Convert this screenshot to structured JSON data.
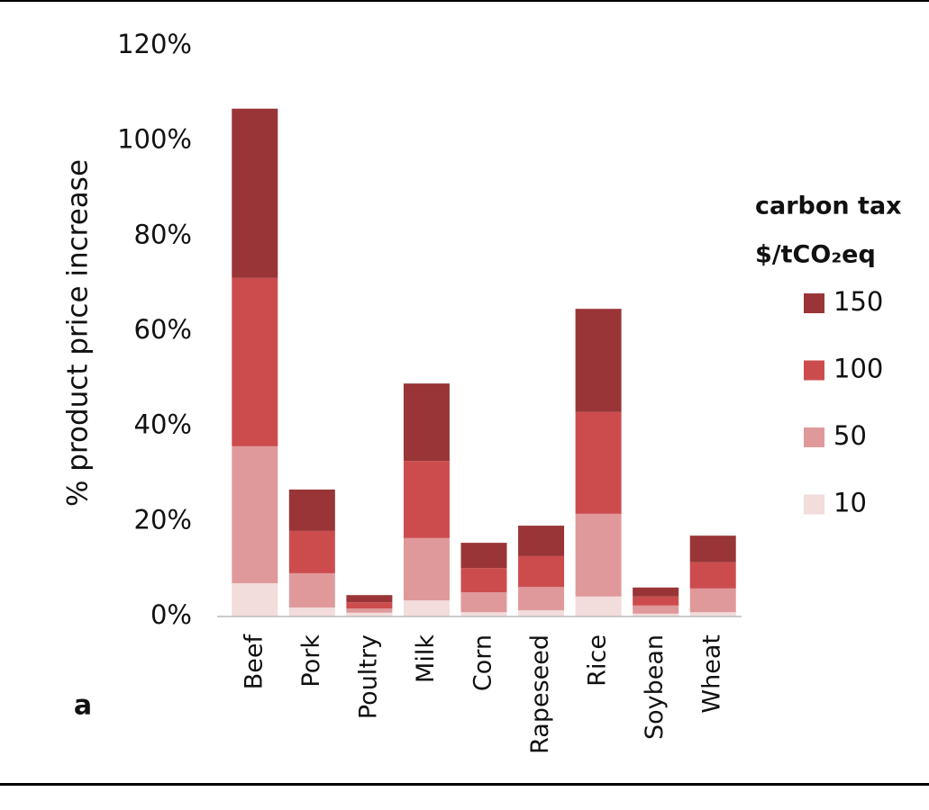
{
  "chart_data": {
    "type": "stacked_bar",
    "y_axis_label": "% product price increase",
    "panel_label": "a",
    "legend_title": [
      "carbon tax",
      "$/tCO₂eq"
    ],
    "categories": [
      "Beef",
      "Pork",
      "Poultry",
      "Milk",
      "Corn",
      "Rapeseed",
      "Rice",
      "Soybean",
      "Wheat"
    ],
    "series": [
      {
        "name": "10",
        "color": "#f2dcdc",
        "values": [
          7.0,
          1.9,
          0.8,
          3.4,
          0.9,
          1.3,
          4.2,
          0.6,
          0.9
        ]
      },
      {
        "name": "50",
        "color": "#e0999a",
        "values": [
          28.8,
          7.2,
          0.9,
          13.1,
          4.2,
          4.9,
          17.4,
          1.7,
          5.0
        ]
      },
      {
        "name": "100",
        "color": "#cc4c4e",
        "values": [
          35.4,
          8.9,
          1.3,
          16.2,
          5.1,
          6.5,
          21.4,
          1.9,
          5.5
        ]
      },
      {
        "name": "150",
        "color": "#993536",
        "values": [
          35.6,
          8.7,
          1.5,
          16.3,
          5.3,
          6.4,
          21.7,
          1.9,
          5.6
        ]
      }
    ],
    "ylim": [
      0,
      120
    ],
    "yticks": [
      {
        "value": 0,
        "label": "0%"
      },
      {
        "value": 20,
        "label": "20%"
      },
      {
        "value": 40,
        "label": "40%"
      },
      {
        "value": 60,
        "label": "60%"
      },
      {
        "value": 80,
        "label": "80%"
      },
      {
        "value": 100,
        "label": "100%"
      },
      {
        "value": 120,
        "label": "120%"
      }
    ],
    "grid": false,
    "legend_position": "right"
  }
}
